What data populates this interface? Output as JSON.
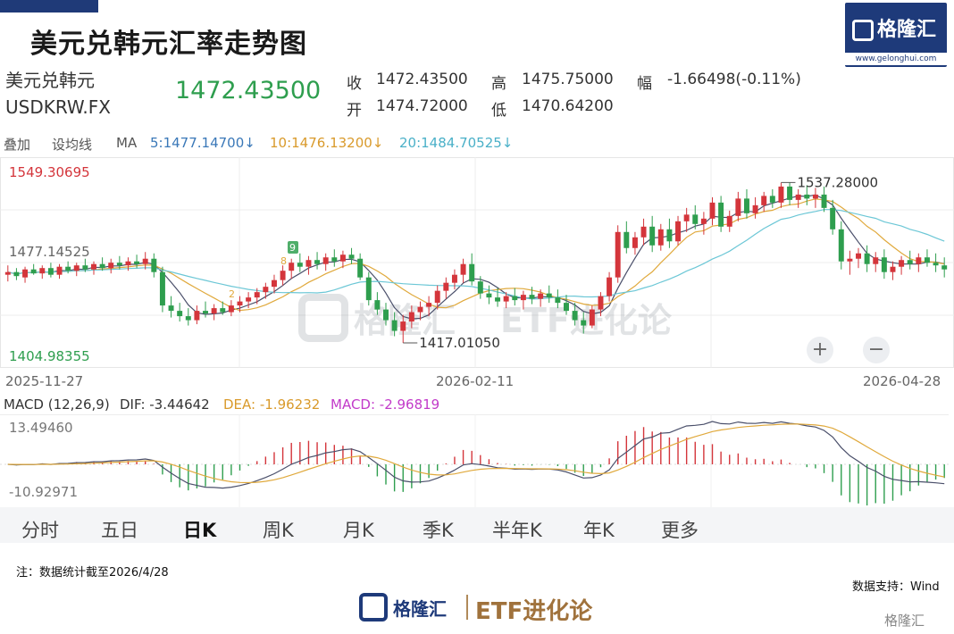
{
  "title": "美元兑韩元汇率走势图",
  "logo": {
    "name": "格隆汇",
    "url": "www.gelonghui.com"
  },
  "quote": {
    "name": "美元兑韩元",
    "symbol": "USDKRW.FX",
    "last": "1472.43500",
    "close_label": "收",
    "close": "1472.43500",
    "high_label": "高",
    "high": "1475.75000",
    "change_label": "幅",
    "change": "-1.66498(-0.11%)",
    "open_label": "开",
    "open": "1474.72000",
    "low_label": "低",
    "low": "1470.64200"
  },
  "ma_bar": {
    "overlay": "叠加",
    "set_ma": "设均线",
    "ma": "MA",
    "ma5": "5:1477.14700↓",
    "ma10": "10:1476.13200↓",
    "ma20": "20:1484.70525↓"
  },
  "colors": {
    "up": "#d4353b",
    "down": "#2e9e4e",
    "ma5": "#4a4f6a",
    "ma10": "#e0a93c",
    "ma20": "#6cc7d6",
    "macd_pink": "#c23ac9",
    "brand": "#1e3a7a"
  },
  "axis": {
    "top_value": "1549.30695",
    "mid_value": "1477.14525",
    "bottom_value": "1404.98355",
    "dates": [
      "2025-11-27",
      "2026-02-11",
      "2026-04-28"
    ]
  },
  "annotations": {
    "high_label": "1537.28000",
    "low_label": "1417.01050",
    "mark_9": "9",
    "mark_8": "8",
    "mark_2": "2"
  },
  "macd": {
    "header": "MACD (12,26,9)",
    "dif": "DIF: -3.44642",
    "dea": "DEA: -1.96232",
    "macd": "MACD: -2.96819",
    "top_value": "13.49460",
    "bottom_value": "-10.92971"
  },
  "tabs": [
    "分时",
    "五日",
    "日K",
    "周K",
    "月K",
    "季K",
    "半年K",
    "年K",
    "更多"
  ],
  "active_tab": "日K",
  "zoom": {
    "in": "+",
    "out": "−"
  },
  "footer": {
    "note": "注：数据统计截至2026/4/28",
    "source": "数据支持：Wind"
  },
  "brand_footer": {
    "name": "格隆汇",
    "etf": "ETF进化论"
  },
  "watermark": {
    "name": "格隆汇",
    "etf": "ETF进化论"
  },
  "chart_data": {
    "type": "candlestick",
    "title": "美元兑韩元汇率走势图",
    "ylim": [
      1404.98355,
      1549.30695
    ],
    "x_range": [
      "2025-11-27",
      "2026-04-28"
    ],
    "x_ticks": [
      "2025-11-27",
      "2026-02-11",
      "2026-04-28"
    ],
    "y_ticks": [
      1549.30695,
      1477.14525,
      1404.98355
    ],
    "grid": true,
    "annotations": [
      {
        "label": "1537.28000",
        "value": 1537.28
      },
      {
        "label": "1417.01050",
        "value": 1417.0105
      }
    ],
    "candles_ohlc": [
      [
        1468,
        1475,
        1463,
        1470
      ],
      [
        1470,
        1473,
        1464,
        1467
      ],
      [
        1466,
        1474,
        1462,
        1472
      ],
      [
        1472,
        1476,
        1468,
        1469
      ],
      [
        1469,
        1475,
        1465,
        1473
      ],
      [
        1473,
        1477,
        1466,
        1468
      ],
      [
        1468,
        1476,
        1465,
        1474
      ],
      [
        1474,
        1478,
        1469,
        1471
      ],
      [
        1471,
        1477,
        1467,
        1475
      ],
      [
        1475,
        1480,
        1470,
        1472
      ],
      [
        1472,
        1478,
        1468,
        1476
      ],
      [
        1476,
        1481,
        1471,
        1473
      ],
      [
        1473,
        1480,
        1469,
        1477
      ],
      [
        1477,
        1482,
        1472,
        1475
      ],
      [
        1475,
        1481,
        1471,
        1478
      ],
      [
        1478,
        1483,
        1473,
        1476
      ],
      [
        1476,
        1485,
        1472,
        1480
      ],
      [
        1480,
        1484,
        1466,
        1470
      ],
      [
        1470,
        1474,
        1440,
        1445
      ],
      [
        1445,
        1452,
        1436,
        1441
      ],
      [
        1441,
        1447,
        1433,
        1437
      ],
      [
        1437,
        1443,
        1430,
        1434
      ],
      [
        1434,
        1445,
        1431,
        1441
      ],
      [
        1441,
        1448,
        1436,
        1439
      ],
      [
        1439,
        1446,
        1434,
        1443
      ],
      [
        1443,
        1448,
        1438,
        1440
      ],
      [
        1440,
        1449,
        1437,
        1445
      ],
      [
        1445,
        1452,
        1440,
        1448
      ],
      [
        1448,
        1455,
        1443,
        1451
      ],
      [
        1451,
        1458,
        1446,
        1455
      ],
      [
        1455,
        1462,
        1450,
        1459
      ],
      [
        1459,
        1468,
        1454,
        1464
      ],
      [
        1464,
        1475,
        1460,
        1471
      ],
      [
        1471,
        1480,
        1465,
        1477
      ],
      [
        1477,
        1484,
        1470,
        1474
      ],
      [
        1474,
        1482,
        1468,
        1479
      ],
      [
        1479,
        1485,
        1472,
        1476
      ],
      [
        1476,
        1484,
        1471,
        1481
      ],
      [
        1481,
        1487,
        1474,
        1478
      ],
      [
        1478,
        1486,
        1473,
        1483
      ],
      [
        1483,
        1488,
        1476,
        1480
      ],
      [
        1480,
        1484,
        1464,
        1466
      ],
      [
        1466,
        1470,
        1445,
        1449
      ],
      [
        1449,
        1455,
        1438,
        1442
      ],
      [
        1442,
        1447,
        1430,
        1434
      ],
      [
        1434,
        1440,
        1422,
        1426
      ],
      [
        1426,
        1438,
        1417,
        1433
      ],
      [
        1433,
        1445,
        1428,
        1440
      ],
      [
        1440,
        1448,
        1434,
        1444
      ],
      [
        1444,
        1452,
        1437,
        1447
      ],
      [
        1447,
        1460,
        1442,
        1456
      ],
      [
        1456,
        1466,
        1450,
        1462
      ],
      [
        1462,
        1472,
        1457,
        1468
      ],
      [
        1468,
        1480,
        1462,
        1476
      ],
      [
        1476,
        1484,
        1460,
        1463
      ],
      [
        1463,
        1467,
        1450,
        1454
      ],
      [
        1454,
        1460,
        1446,
        1451
      ],
      [
        1451,
        1458,
        1444,
        1448
      ],
      [
        1448,
        1455,
        1443,
        1452
      ],
      [
        1452,
        1458,
        1445,
        1449
      ],
      [
        1449,
        1456,
        1442,
        1453
      ],
      [
        1453,
        1459,
        1446,
        1450
      ],
      [
        1450,
        1457,
        1444,
        1454
      ],
      [
        1454,
        1460,
        1447,
        1451
      ],
      [
        1451,
        1457,
        1443,
        1447
      ],
      [
        1447,
        1453,
        1438,
        1441
      ],
      [
        1441,
        1447,
        1430,
        1434
      ],
      [
        1434,
        1440,
        1424,
        1430
      ],
      [
        1430,
        1445,
        1428,
        1442
      ],
      [
        1442,
        1455,
        1437,
        1452
      ],
      [
        1452,
        1470,
        1448,
        1466
      ],
      [
        1466,
        1505,
        1462,
        1500
      ],
      [
        1500,
        1508,
        1484,
        1488
      ],
      [
        1488,
        1500,
        1483,
        1496
      ],
      [
        1496,
        1510,
        1490,
        1504
      ],
      [
        1504,
        1512,
        1485,
        1490
      ],
      [
        1490,
        1506,
        1486,
        1502
      ],
      [
        1502,
        1510,
        1488,
        1493
      ],
      [
        1493,
        1512,
        1490,
        1508
      ],
      [
        1508,
        1518,
        1500,
        1513
      ],
      [
        1513,
        1520,
        1502,
        1506
      ],
      [
        1506,
        1515,
        1498,
        1510
      ],
      [
        1510,
        1526,
        1505,
        1522
      ],
      [
        1522,
        1527,
        1500,
        1504
      ],
      [
        1504,
        1516,
        1500,
        1512
      ],
      [
        1512,
        1530,
        1508,
        1525
      ],
      [
        1525,
        1532,
        1510,
        1514
      ],
      [
        1514,
        1526,
        1510,
        1520
      ],
      [
        1520,
        1530,
        1515,
        1527
      ],
      [
        1527,
        1532,
        1518,
        1522
      ],
      [
        1522,
        1537,
        1518,
        1534
      ],
      [
        1534,
        1537,
        1520,
        1524
      ],
      [
        1524,
        1532,
        1518,
        1528
      ],
      [
        1528,
        1535,
        1520,
        1525
      ],
      [
        1525,
        1533,
        1518,
        1528
      ],
      [
        1528,
        1534,
        1515,
        1518
      ],
      [
        1518,
        1524,
        1498,
        1502
      ],
      [
        1502,
        1508,
        1472,
        1478
      ],
      [
        1478,
        1486,
        1468,
        1480
      ],
      [
        1480,
        1488,
        1473,
        1484
      ],
      [
        1484,
        1490,
        1470,
        1476
      ],
      [
        1476,
        1485,
        1470,
        1481
      ],
      [
        1481,
        1487,
        1465,
        1470
      ],
      [
        1470,
        1478,
        1464,
        1474
      ],
      [
        1474,
        1482,
        1468,
        1479
      ],
      [
        1479,
        1486,
        1472,
        1476
      ],
      [
        1476,
        1484,
        1470,
        1481
      ],
      [
        1481,
        1487,
        1474,
        1477
      ],
      [
        1477,
        1484,
        1470,
        1475
      ],
      [
        1475,
        1481,
        1466,
        1472
      ]
    ],
    "series": [
      {
        "name": "DIF",
        "color": "#4a4f6a"
      },
      {
        "name": "DEA",
        "color": "#e0a93c"
      },
      {
        "name": "MACD",
        "color": "#c23ac9"
      }
    ]
  }
}
